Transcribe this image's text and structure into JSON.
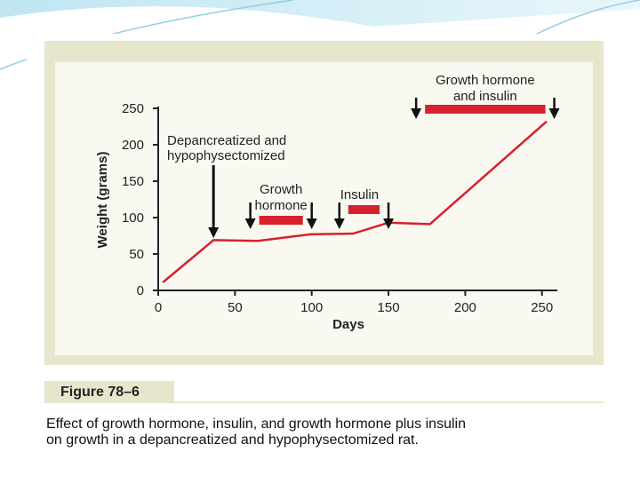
{
  "chart_data": {
    "type": "line",
    "x_label": "Days",
    "y_label": "Weight (grams)",
    "x": [
      3,
      36,
      65,
      99,
      127,
      150,
      177,
      253
    ],
    "series": [
      {
        "name": "Weight",
        "color": "#d8202e",
        "values": [
          11,
          69,
          68,
          77,
          78,
          93,
          91,
          232
        ]
      }
    ],
    "xlim": [
      0,
      260
    ],
    "xticks": [
      0,
      50,
      100,
      150,
      200,
      250
    ],
    "ylim": [
      0,
      250
    ],
    "yticks": [
      0,
      50,
      100,
      150,
      200,
      250
    ],
    "events": [
      {
        "label": [
          "Depancreatized and",
          "hypophysectomized"
        ],
        "day": 36
      }
    ],
    "periods": [
      {
        "label": [
          "Growth",
          "hormone"
        ],
        "start": 60,
        "end": 100
      },
      {
        "label": [
          "Insulin"
        ],
        "start": 118,
        "end": 150
      },
      {
        "label": [
          "Growth hormone",
          "and insulin"
        ],
        "start": 168,
        "end": 258
      }
    ]
  },
  "figure": {
    "label": "Figure 78–6",
    "caption": [
      "Effect of growth hormone, insulin, and growth hormone plus insulin",
      "on growth in a depancreatized and hypophysectomized rat."
    ]
  }
}
